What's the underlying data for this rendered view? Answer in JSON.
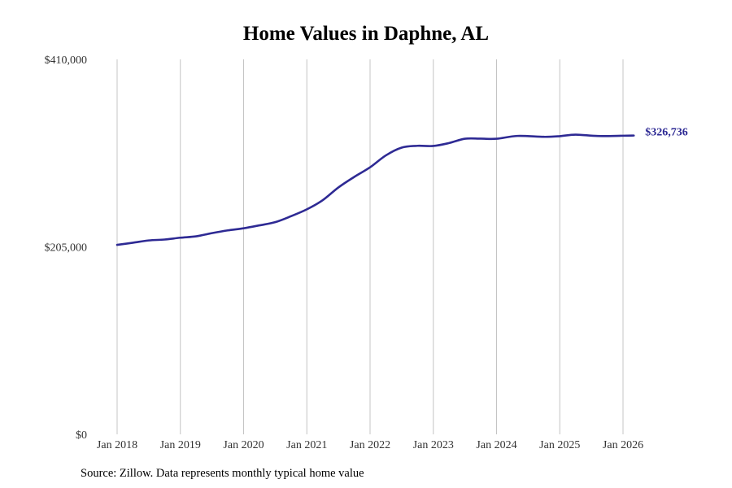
{
  "chart_data": {
    "type": "line",
    "title": "Home Values in Daphne, AL",
    "xlabel": "",
    "ylabel": "",
    "ylim": [
      0,
      410000
    ],
    "xlim": [
      2018.0,
      2026.0
    ],
    "yticks": [
      {
        "value": 0,
        "label": "$0"
      },
      {
        "value": 205000,
        "label": "$205,000"
      },
      {
        "value": 410000,
        "label": "$410,000"
      }
    ],
    "xticks": [
      {
        "value": 2018,
        "label": "Jan 2018"
      },
      {
        "value": 2019,
        "label": "Jan 2019"
      },
      {
        "value": 2020,
        "label": "Jan 2020"
      },
      {
        "value": 2021,
        "label": "Jan 2021"
      },
      {
        "value": 2022,
        "label": "Jan 2022"
      },
      {
        "value": 2023,
        "label": "Jan 2023"
      },
      {
        "value": 2024,
        "label": "Jan 2024"
      },
      {
        "value": 2025,
        "label": "Jan 2025"
      },
      {
        "value": 2026,
        "label": "Jan 2026"
      }
    ],
    "grid": "vertical",
    "series": [
      {
        "name": "Typical home value",
        "color": "#2e2a94",
        "x": [
          2018.0,
          2018.25,
          2018.5,
          2018.75,
          2019.0,
          2019.25,
          2019.5,
          2019.75,
          2020.0,
          2020.25,
          2020.5,
          2020.75,
          2021.0,
          2021.25,
          2021.5,
          2021.75,
          2022.0,
          2022.25,
          2022.5,
          2022.75,
          2023.0,
          2023.25,
          2023.5,
          2023.75,
          2024.0,
          2024.33,
          2024.75,
          2025.0,
          2025.25,
          2025.6,
          2026.0,
          2026.17
        ],
        "values": [
          207200,
          209500,
          212000,
          213000,
          215000,
          216500,
          220000,
          223000,
          225300,
          228500,
          232000,
          238500,
          246000,
          256000,
          270000,
          281500,
          292000,
          305000,
          313500,
          315500,
          315300,
          318500,
          323200,
          323300,
          323200,
          326300,
          325300,
          326000,
          327700,
          326200,
          326500,
          326736
        ]
      }
    ],
    "end_label": "$326,736"
  },
  "source": "Source: Zillow. Data represents monthly typical home value"
}
